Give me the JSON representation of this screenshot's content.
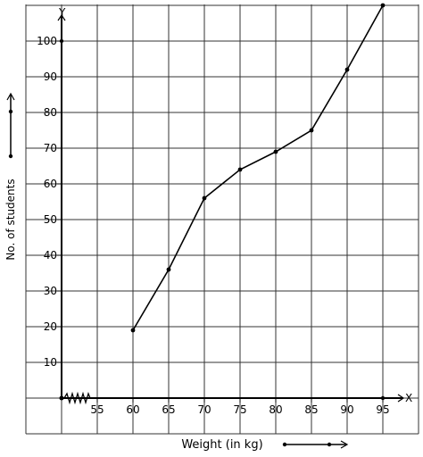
{
  "chart_data": {
    "type": "line",
    "xlabel": "Weight (in kg)",
    "ylabel": "No. of students",
    "x_axis_letter": "X",
    "y_axis_letter": "Y",
    "x": [
      60,
      65,
      70,
      75,
      80,
      85,
      90,
      95
    ],
    "y": [
      19,
      36,
      56,
      64,
      69,
      75,
      92,
      110
    ],
    "x_ticks": [
      55,
      60,
      65,
      70,
      75,
      80,
      85,
      90,
      95
    ],
    "y_ticks": [
      10,
      20,
      30,
      40,
      50,
      60,
      70,
      80,
      90,
      100
    ],
    "xlim": [
      50,
      100
    ],
    "ylim": [
      -10,
      110
    ],
    "grid": true,
    "axis_break_on_x": true,
    "colors": {
      "line": "#000000",
      "grid": "#333333"
    }
  }
}
